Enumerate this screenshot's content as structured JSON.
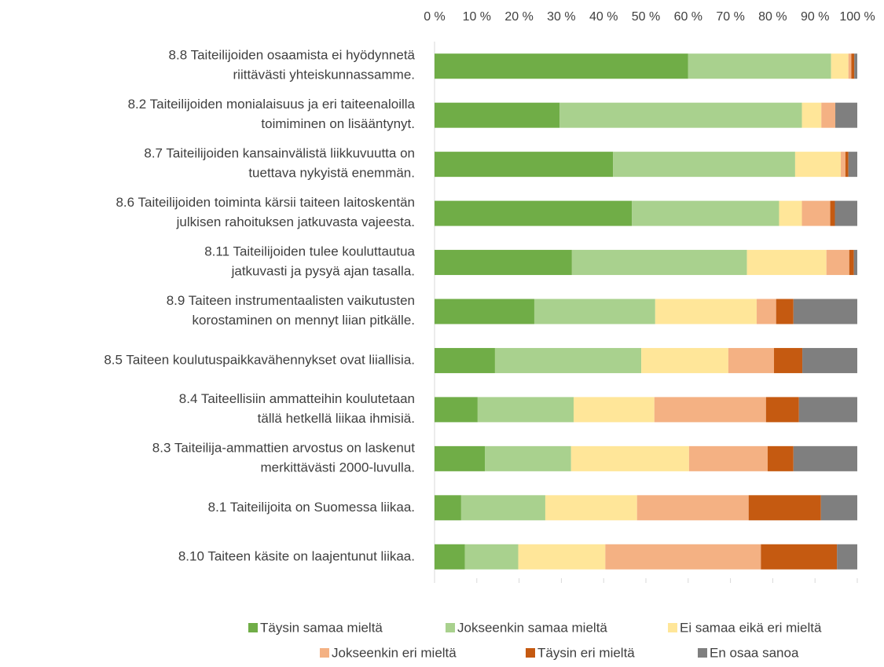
{
  "chart_data": {
    "type": "stacked_barh",
    "categories": [
      "8.8 Taiteilijoiden osaamista ei hyödynnetä\nriittävästi yhteiskunnassamme.",
      "8.2 Taiteilijoiden monialaisuus ja eri taiteenaloilla\ntoimiminen on lisääntynyt.",
      "8.7 Taiteilijoiden kansainvälistä liikkuvuutta on\ntuettava nykyistä enemmän.",
      "8.6 Taiteilijoiden toiminta kärsii taiteen  laitoskentän\njulkisen rahoituksen jatkuvasta vajeesta.",
      "8.11    Taiteilijoiden tulee kouluttautua\njatkuvasti ja pysyä ajan tasalla.",
      "8.9 Taiteen instrumentaalisten vaikutusten\nkorostaminen on mennyt liian pitkälle.",
      "8.5 Taiteen koulutuspaikkavähennykset ovat liiallisia.",
      "8.4 Taiteellisiin ammatteihin koulutetaan\ntällä hetkellä liikaa ihmisiä.",
      "8.3 Taiteilija-ammattien arvostus on laskenut\nmerkittävästi 2000-luvulla.",
      "8.1 Taiteilijoita on Suomessa liikaa.",
      "8.10 Taiteen käsite on laajentunut liikaa."
    ],
    "series": [
      {
        "name": "Täysin samaa mieltä",
        "color": "#70ad47",
        "values": [
          60.0,
          29.6,
          42.2,
          46.7,
          32.5,
          23.6,
          14.3,
          10.2,
          11.9,
          6.3,
          7.2
        ]
      },
      {
        "name": "Jokseenkin samaa mieltä",
        "color": "#a9d18e",
        "values": [
          33.8,
          57.3,
          43.1,
          34.8,
          41.4,
          28.6,
          34.6,
          22.7,
          20.4,
          19.9,
          12.6
        ]
      },
      {
        "name": "Ei samaa eikä eri mieltä",
        "color": "#ffe699",
        "values": [
          4.1,
          4.6,
          10.8,
          5.4,
          18.8,
          24.0,
          20.6,
          19.1,
          27.9,
          21.7,
          20.6
        ]
      },
      {
        "name": "Jokseenkin eri mieltä",
        "color": "#f4b183",
        "values": [
          0.7,
          3.3,
          1.1,
          6.7,
          5.4,
          4.6,
          10.8,
          26.4,
          18.6,
          26.4,
          36.8
        ]
      },
      {
        "name": "Täysin eri mieltä",
        "color": "#c55a11",
        "values": [
          0.7,
          0,
          0.7,
          1.1,
          1.1,
          4.1,
          6.7,
          7.8,
          6.1,
          17.1,
          18.0
        ]
      },
      {
        "name": "En osaa sanoa",
        "color": "#7f7f7f",
        "values": [
          0.7,
          5.2,
          2.1,
          5.3,
          0.8,
          15.1,
          13.0,
          13.8,
          15.1,
          8.6,
          4.8
        ]
      }
    ],
    "xlim": [
      0,
      100
    ],
    "xticks": [
      {
        "value": 0,
        "label": "0 %"
      },
      {
        "value": 10,
        "label": "10 %"
      },
      {
        "value": 20,
        "label": "20 %"
      },
      {
        "value": 30,
        "label": "30 %"
      },
      {
        "value": 40,
        "label": "40 %"
      },
      {
        "value": 50,
        "label": "50 %"
      },
      {
        "value": 60,
        "label": "60 %"
      },
      {
        "value": 70,
        "label": "70 %"
      },
      {
        "value": 80,
        "label": "80 %"
      },
      {
        "value": 90,
        "label": "90 %"
      },
      {
        "value": 100,
        "label": "100 %"
      }
    ],
    "grid": false,
    "legend": "bottom"
  }
}
